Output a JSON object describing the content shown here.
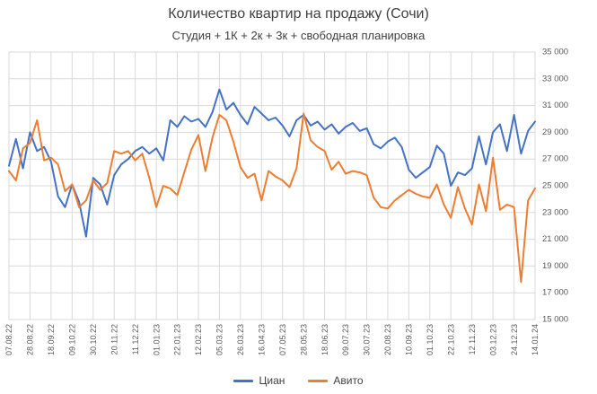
{
  "chart": {
    "title": "Количество квартир на продажу (Сочи)",
    "subtitle": "Студия + 1К + 2к + 3к + свободная планировка"
  },
  "chart_data": {
    "type": "line",
    "title": "Количество квартир на продажу (Сочи)",
    "subtitle": "Студия + 1К + 2к + 3к + свободная планировка",
    "grid": true,
    "legend_position": "bottom",
    "ylim": [
      15000,
      35000
    ],
    "ytick_step": 2000,
    "ytick_labels": [
      "15 000",
      "17 000",
      "19 000",
      "21 000",
      "23 000",
      "25 000",
      "27 000",
      "29 000",
      "31 000",
      "33 000",
      "35 000"
    ],
    "grid_color": "#d9d9d9",
    "axis_text_color": "#595959",
    "label_every_n_points": 3,
    "x_labels": [
      "07.08.22",
      "28.08.22",
      "18.09.22",
      "09.10.22",
      "30.10.22",
      "20.11.22",
      "11.12.22",
      "01.01.23",
      "22.01.23",
      "12.02.23",
      "05.03.23",
      "26.03.23",
      "16.04.23",
      "07.05.23",
      "28.05.23",
      "18.06.23",
      "09.07.23",
      "30.07.23",
      "20.08.23",
      "10.09.23",
      "01.10.23",
      "22.10.23",
      "12.11.23",
      "03.12.23",
      "24.12.23",
      "14.01.24"
    ],
    "series": [
      {
        "key": "cian",
        "name": "Циан",
        "color": "#4472C4",
        "values": [
          26500,
          28500,
          26300,
          29000,
          27600,
          27900,
          26800,
          24200,
          23400,
          25100,
          23800,
          21200,
          25600,
          25100,
          23600,
          25800,
          26600,
          27000,
          27600,
          27900,
          27400,
          27800,
          26900,
          29900,
          29400,
          30200,
          29800,
          30000,
          29400,
          30500,
          32200,
          30700,
          31200,
          30300,
          29600,
          30900,
          30400,
          29900,
          30100,
          29500,
          28700,
          29900,
          30300,
          29500,
          29800,
          29200,
          29600,
          28900,
          29400,
          29700,
          29100,
          29300,
          28100,
          27800,
          28300,
          28600,
          27900,
          26200,
          25600,
          26000,
          26400,
          28000,
          27400,
          25000,
          26000,
          25800,
          26300,
          28700,
          26600,
          29000,
          29600,
          27600,
          30300,
          27400,
          29100,
          29800
        ]
      },
      {
        "key": "avito",
        "name": "Авито",
        "color": "#ED7D31",
        "values": [
          26100,
          25400,
          27800,
          28200,
          29900,
          26900,
          27100,
          26600,
          24600,
          25100,
          23400,
          23900,
          25400,
          24700,
          25200,
          27600,
          27400,
          27600,
          26900,
          27400,
          25600,
          23400,
          25000,
          24800,
          24300,
          26000,
          27700,
          28800,
          26100,
          28600,
          30300,
          29900,
          28300,
          26400,
          25600,
          25900,
          23900,
          26100,
          25700,
          25400,
          24900,
          26300,
          30400,
          28400,
          27900,
          27600,
          26200,
          26800,
          25900,
          26100,
          26000,
          25800,
          24100,
          23400,
          23300,
          23900,
          24300,
          24700,
          24400,
          24200,
          24100,
          25100,
          23600,
          22600,
          24900,
          23300,
          22100,
          25100,
          23100,
          27100,
          23200,
          23600,
          23400,
          17800,
          23900,
          24800
        ]
      }
    ]
  }
}
